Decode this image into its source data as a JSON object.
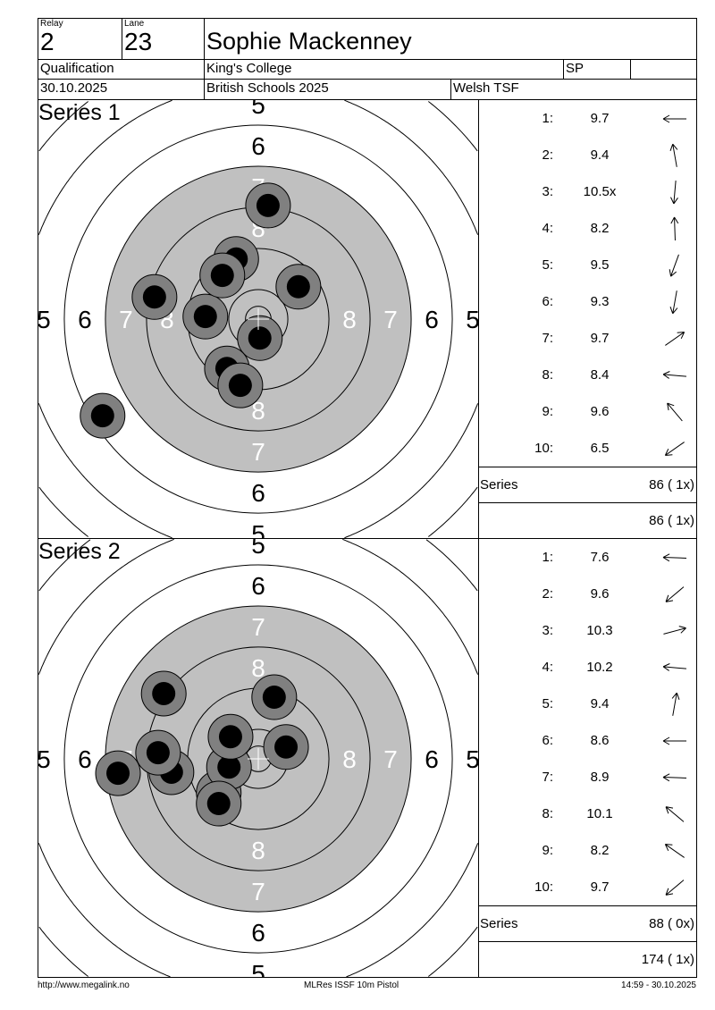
{
  "header": {
    "relay_label": "Relay",
    "relay": "2",
    "lane_label": "Lane",
    "lane": "23",
    "name": "Sophie Mackenney",
    "stage": "Qualification",
    "club": "King's College",
    "class": "SP",
    "class_extra": "",
    "date": "30.10.2025",
    "event": "British Schools 2025",
    "region": "Welsh TSF"
  },
  "ring_labels": [
    "5",
    "6",
    "7",
    "8"
  ],
  "series": [
    {
      "title": "Series 1",
      "label": "Series",
      "series_total": "86 ( 1x)",
      "running_total": "86 ( 1x)",
      "shots": [
        {
          "n": "1:",
          "score": "9.7",
          "arrow_deg": 180,
          "x": -10.3,
          "y": 0.5
        },
        {
          "n": "2:",
          "score": "9.4",
          "arrow_deg": 100,
          "x": -4.3,
          "y": 11.7
        },
        {
          "n": "3:",
          "score": "10.5x",
          "arrow_deg": -95,
          "x": 0.3,
          "y": -3.7
        },
        {
          "n": "4:",
          "score": "8.2",
          "arrow_deg": 92,
          "x": 1.9,
          "y": 22.1
        },
        {
          "n": "5:",
          "score": "9.5",
          "arrow_deg": -110,
          "x": -6.1,
          "y": -9.6
        },
        {
          "n": "6:",
          "score": "9.3",
          "arrow_deg": -100,
          "x": -3.5,
          "y": -12.9
        },
        {
          "n": "7:",
          "score": "9.7",
          "arrow_deg": 35,
          "x": 7.8,
          "y": 6.3
        },
        {
          "n": "8:",
          "score": "8.4",
          "arrow_deg": 175,
          "x": -20.2,
          "y": 4.3
        },
        {
          "n": "9:",
          "score": "9.6",
          "arrow_deg": 130,
          "x": -7.0,
          "y": 8.5
        },
        {
          "n": "10:",
          "score": "6.5",
          "arrow_deg": -145,
          "x": -30.3,
          "y": -18.8
        }
      ]
    },
    {
      "title": "Series 2",
      "label": "Series",
      "series_total": "88 ( 0x)",
      "running_total": "174 ( 1x)",
      "shots": [
        {
          "n": "1:",
          "score": "7.6",
          "arrow_deg": 178,
          "x": -27.3,
          "y": -2.8
        },
        {
          "n": "2:",
          "score": "9.6",
          "arrow_deg": -140,
          "x": -7.7,
          "y": -6.6
        },
        {
          "n": "3:",
          "score": "10.3",
          "arrow_deg": 15,
          "x": 5.4,
          "y": 2.3
        },
        {
          "n": "4:",
          "score": "10.2",
          "arrow_deg": 175,
          "x": -5.7,
          "y": -1.6
        },
        {
          "n": "5:",
          "score": "9.4",
          "arrow_deg": 80,
          "x": 3.1,
          "y": 12.0
        },
        {
          "n": "6:",
          "score": "8.6",
          "arrow_deg": 180,
          "x": -16.9,
          "y": -2.6
        },
        {
          "n": "7:",
          "score": "8.9",
          "arrow_deg": 178,
          "x": -19.5,
          "y": 1.2
        },
        {
          "n": "8:",
          "score": "10.1",
          "arrow_deg": 140,
          "x": -5.4,
          "y": 4.3
        },
        {
          "n": "9:",
          "score": "8.2",
          "arrow_deg": 145,
          "x": -18.4,
          "y": 12.7
        },
        {
          "n": "10:",
          "score": "9.7",
          "arrow_deg": -140,
          "x": -7.7,
          "y": -8.7
        }
      ]
    }
  ],
  "footer": {
    "url": "http://www.megalink.no",
    "software": "MLRes ISSF 10m Pistol",
    "timestamp": "14:59 - 30.10.2025"
  },
  "colors": {
    "black_area": "#c0c0c0",
    "shot_outer": "#808080",
    "shot_core": "#000000"
  }
}
